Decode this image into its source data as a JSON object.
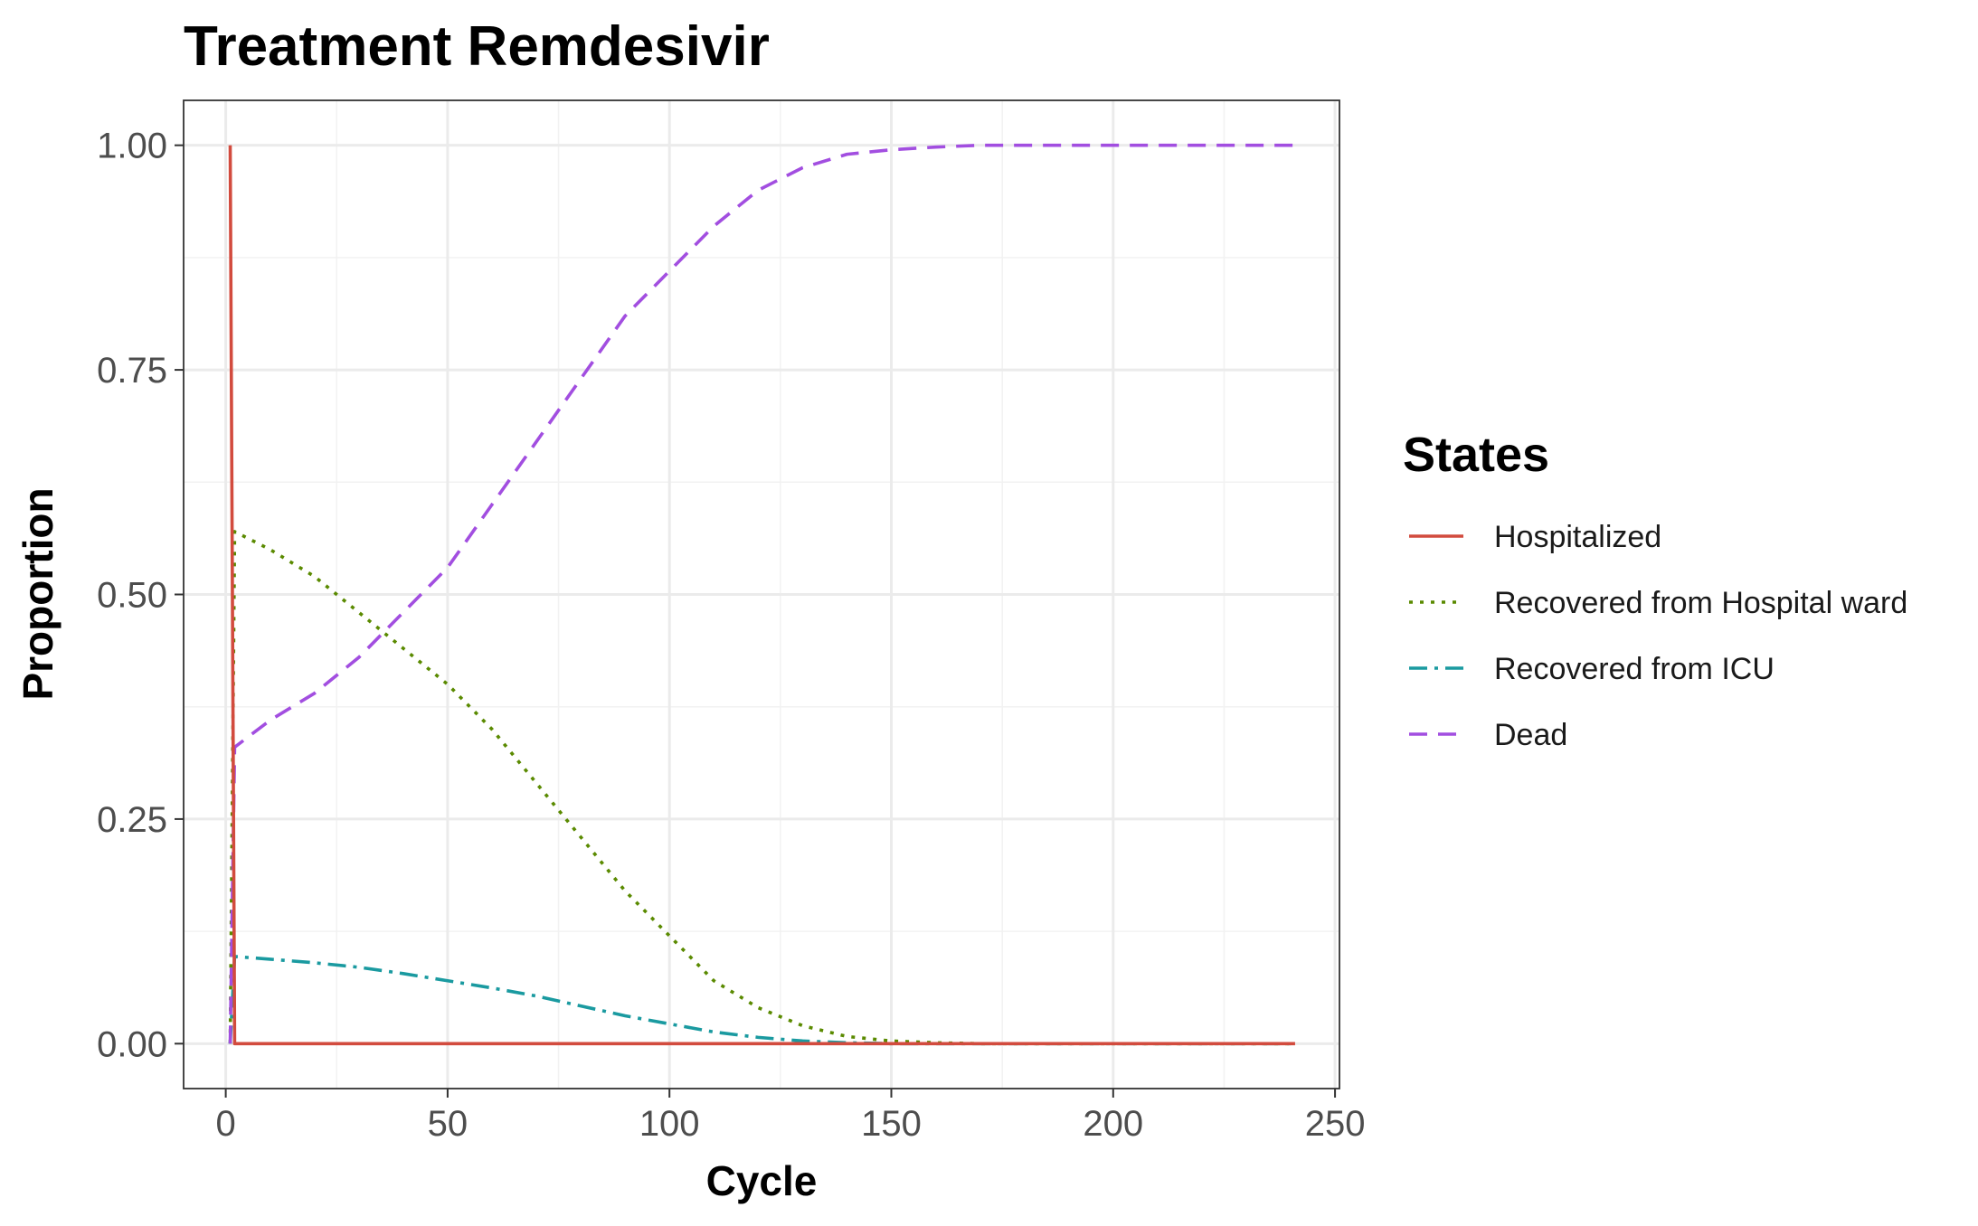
{
  "chart_data": {
    "type": "line",
    "title": "Treatment Remdesivir",
    "xlabel": "Cycle",
    "ylabel": "Proportion",
    "xlim": [
      -9.5,
      251
    ],
    "ylim": [
      -0.05,
      1.05
    ],
    "x_ticks": [
      0,
      50,
      100,
      150,
      200,
      250
    ],
    "x_tick_labels": [
      "0",
      "50",
      "100",
      "150",
      "200",
      "250"
    ],
    "y_ticks": [
      0,
      0.25,
      0.5,
      0.75,
      1
    ],
    "y_tick_labels": [
      "0.00",
      "0.25",
      "0.50",
      "0.75",
      "1.00"
    ],
    "grid": true,
    "legend": {
      "title": "States",
      "position": "right"
    },
    "series": [
      {
        "name": "Hospitalized",
        "color": "#d24b3e",
        "dash": "solid",
        "points": [
          [
            1,
            1.0
          ],
          [
            2,
            0.0
          ],
          [
            241,
            0.0
          ]
        ]
      },
      {
        "name": "Recovered from Hospital ward",
        "color": "#5a8a00",
        "dash": "dotted",
        "points": [
          [
            1,
            0.0
          ],
          [
            2,
            0.57
          ],
          [
            10,
            0.55
          ],
          [
            20,
            0.52
          ],
          [
            30,
            0.48
          ],
          [
            40,
            0.44
          ],
          [
            50,
            0.4
          ],
          [
            60,
            0.35
          ],
          [
            70,
            0.29
          ],
          [
            80,
            0.23
          ],
          [
            90,
            0.17
          ],
          [
            100,
            0.12
          ],
          [
            110,
            0.07
          ],
          [
            120,
            0.04
          ],
          [
            130,
            0.02
          ],
          [
            140,
            0.008
          ],
          [
            150,
            0.003
          ],
          [
            160,
            0.001
          ],
          [
            170,
            0.0
          ],
          [
            241,
            0.0
          ]
        ]
      },
      {
        "name": "Recovered from ICU",
        "color": "#1a9aa0",
        "dash": "dashdot",
        "points": [
          [
            1,
            0.0
          ],
          [
            2,
            0.097
          ],
          [
            10,
            0.094
          ],
          [
            20,
            0.09
          ],
          [
            30,
            0.085
          ],
          [
            40,
            0.078
          ],
          [
            50,
            0.07
          ],
          [
            60,
            0.062
          ],
          [
            70,
            0.053
          ],
          [
            80,
            0.042
          ],
          [
            90,
            0.031
          ],
          [
            100,
            0.022
          ],
          [
            110,
            0.013
          ],
          [
            120,
            0.007
          ],
          [
            130,
            0.003
          ],
          [
            140,
            0.001
          ],
          [
            150,
            0.0
          ],
          [
            241,
            0.0
          ]
        ]
      },
      {
        "name": "Dead",
        "color": "#a24ee0",
        "dash": "dashed",
        "points": [
          [
            1,
            0.0
          ],
          [
            2,
            0.33
          ],
          [
            10,
            0.36
          ],
          [
            20,
            0.39
          ],
          [
            30,
            0.43
          ],
          [
            40,
            0.48
          ],
          [
            50,
            0.53
          ],
          [
            60,
            0.6
          ],
          [
            70,
            0.67
          ],
          [
            80,
            0.74
          ],
          [
            90,
            0.81
          ],
          [
            100,
            0.86
          ],
          [
            110,
            0.91
          ],
          [
            120,
            0.95
          ],
          [
            130,
            0.975
          ],
          [
            140,
            0.99
          ],
          [
            150,
            0.995
          ],
          [
            160,
            0.998
          ],
          [
            170,
            1.0
          ],
          [
            241,
            1.0
          ]
        ]
      }
    ]
  }
}
